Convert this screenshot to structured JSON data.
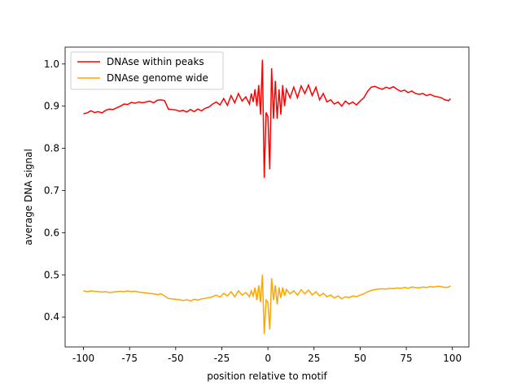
{
  "chart_data": {
    "type": "line",
    "xlabel": "position relative to motif",
    "ylabel": "average DNA signal",
    "x": [
      -100,
      -98,
      -96,
      -94,
      -92,
      -90,
      -88,
      -86,
      -84,
      -82,
      -80,
      -78,
      -76,
      -74,
      -72,
      -70,
      -68,
      -66,
      -64,
      -62,
      -60,
      -58,
      -56,
      -54,
      -52,
      -50,
      -48,
      -46,
      -44,
      -42,
      -40,
      -38,
      -36,
      -34,
      -32,
      -30,
      -28,
      -26,
      -24,
      -22,
      -20,
      -18,
      -16,
      -14,
      -12,
      -10,
      -9,
      -8,
      -7,
      -6,
      -5,
      -4,
      -3,
      -2,
      -1,
      0,
      1,
      2,
      3,
      4,
      5,
      6,
      7,
      8,
      9,
      10,
      12,
      14,
      16,
      18,
      20,
      22,
      24,
      26,
      28,
      30,
      32,
      34,
      36,
      38,
      40,
      42,
      44,
      46,
      48,
      50,
      52,
      54,
      56,
      58,
      60,
      62,
      64,
      66,
      68,
      70,
      72,
      74,
      76,
      78,
      80,
      82,
      84,
      86,
      88,
      90,
      92,
      94,
      96,
      98,
      99
    ],
    "series": [
      {
        "name": "DNAse within peaks",
        "color": "#ff0000",
        "values": [
          0.882,
          0.884,
          0.889,
          0.885,
          0.887,
          0.884,
          0.89,
          0.893,
          0.892,
          0.896,
          0.9,
          0.905,
          0.904,
          0.909,
          0.907,
          0.91,
          0.908,
          0.91,
          0.912,
          0.908,
          0.914,
          0.915,
          0.913,
          0.893,
          0.892,
          0.891,
          0.888,
          0.89,
          0.886,
          0.892,
          0.887,
          0.893,
          0.889,
          0.895,
          0.898,
          0.905,
          0.91,
          0.903,
          0.918,
          0.902,
          0.925,
          0.908,
          0.93,
          0.912,
          0.922,
          0.905,
          0.93,
          0.91,
          0.94,
          0.9,
          0.95,
          0.88,
          1.01,
          0.73,
          0.885,
          0.875,
          0.75,
          0.99,
          0.87,
          0.96,
          0.87,
          0.94,
          0.88,
          0.95,
          0.9,
          0.94,
          0.92,
          0.945,
          0.92,
          0.948,
          0.93,
          0.95,
          0.925,
          0.945,
          0.915,
          0.93,
          0.91,
          0.915,
          0.905,
          0.91,
          0.9,
          0.912,
          0.905,
          0.91,
          0.903,
          0.912,
          0.92,
          0.935,
          0.945,
          0.947,
          0.943,
          0.94,
          0.945,
          0.942,
          0.946,
          0.94,
          0.935,
          0.938,
          0.932,
          0.936,
          0.93,
          0.928,
          0.93,
          0.925,
          0.928,
          0.924,
          0.922,
          0.92,
          0.915,
          0.913,
          0.918
        ]
      },
      {
        "name": "DNAse genome wide",
        "color": "#ffa500",
        "values": [
          0.462,
          0.46,
          0.462,
          0.461,
          0.46,
          0.459,
          0.46,
          0.458,
          0.459,
          0.46,
          0.461,
          0.46,
          0.462,
          0.46,
          0.461,
          0.459,
          0.458,
          0.457,
          0.456,
          0.455,
          0.453,
          0.455,
          0.45,
          0.444,
          0.443,
          0.442,
          0.441,
          0.439,
          0.441,
          0.438,
          0.442,
          0.44,
          0.443,
          0.444,
          0.446,
          0.448,
          0.452,
          0.447,
          0.456,
          0.45,
          0.46,
          0.448,
          0.462,
          0.452,
          0.458,
          0.448,
          0.462,
          0.45,
          0.47,
          0.44,
          0.475,
          0.435,
          0.5,
          0.36,
          0.44,
          0.435,
          0.37,
          0.492,
          0.44,
          0.475,
          0.43,
          0.47,
          0.445,
          0.47,
          0.45,
          0.465,
          0.455,
          0.462,
          0.452,
          0.465,
          0.455,
          0.464,
          0.452,
          0.46,
          0.45,
          0.456,
          0.448,
          0.452,
          0.445,
          0.45,
          0.443,
          0.448,
          0.446,
          0.45,
          0.448,
          0.452,
          0.455,
          0.46,
          0.463,
          0.465,
          0.466,
          0.467,
          0.466,
          0.468,
          0.467,
          0.469,
          0.468,
          0.47,
          0.468,
          0.471,
          0.47,
          0.469,
          0.471,
          0.47,
          0.472,
          0.471,
          0.473,
          0.472,
          0.47,
          0.471,
          0.474
        ]
      }
    ],
    "xlim": [
      -109.95,
      108.95
    ],
    "xticks": [
      -100,
      -75,
      -50,
      -25,
      0,
      25,
      50,
      75,
      100
    ],
    "ylim": [
      0.329,
      1.04
    ],
    "yticks": [
      0.4,
      0.5,
      0.6,
      0.7,
      0.8,
      0.9,
      {
        "value": 1,
        "label": "1.0"
      }
    ],
    "legend": "upper left",
    "grid": false
  }
}
